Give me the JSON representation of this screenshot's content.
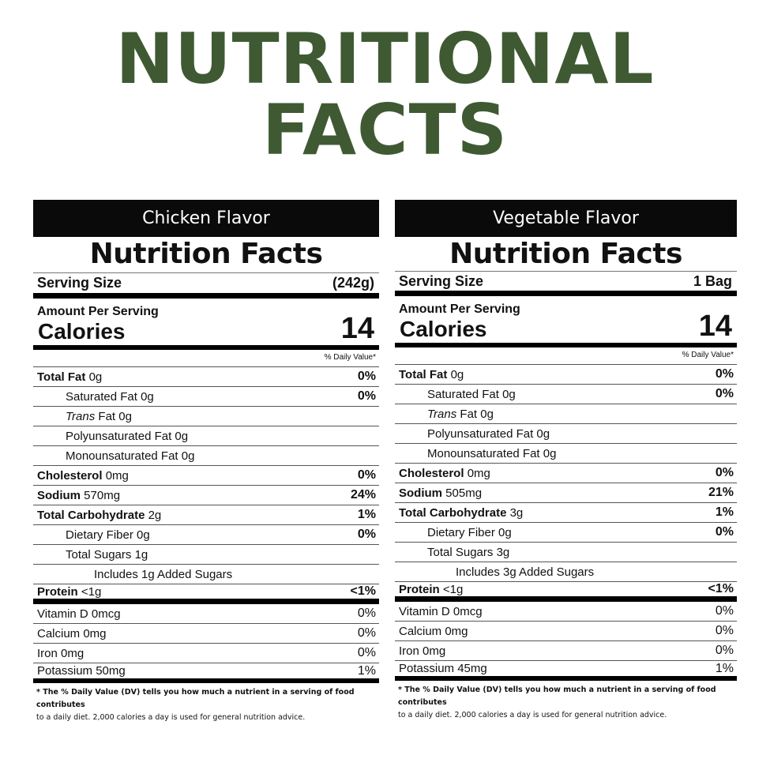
{
  "title": {
    "line1": "NUTRITIONAL",
    "line2": "FACTS"
  },
  "panels": [
    {
      "flavor": "Chicken Flavor",
      "heading": "Nutrition Facts",
      "serving_label": "Serving Size",
      "serving_value": "(242g)",
      "amount_per_serving": "Amount Per Serving",
      "calories_label": "Calories",
      "calories_value": "14",
      "daily_value_header": "% Daily Value*",
      "nutrients": [
        {
          "label": "Total Fat",
          "amount": "0g",
          "pct": "0%"
        },
        {
          "label": "Saturated Fat",
          "amount": "0g",
          "pct": "0%"
        },
        {
          "label": "Trans",
          "amount": "Fat 0g",
          "pct": ""
        },
        {
          "label": "Polyunsaturated Fat",
          "amount": "0g",
          "pct": ""
        },
        {
          "label": "Monounsaturated Fat",
          "amount": "0g",
          "pct": ""
        },
        {
          "label": "Cholesterol",
          "amount": "0mg",
          "pct": "0%"
        },
        {
          "label": "Sodium",
          "amount": "570mg",
          "pct": "24%"
        },
        {
          "label": "Total Carbohydrate",
          "amount": "2g",
          "pct": "1%"
        },
        {
          "label": "Dietary Fiber",
          "amount": "0g",
          "pct": "0%"
        },
        {
          "label": "Total Sugars",
          "amount": "1g",
          "pct": ""
        },
        {
          "label": "Includes 1g Added Sugars",
          "amount": "",
          "pct": ""
        },
        {
          "label": "Protein",
          "amount": "<1g",
          "pct": "<1%"
        }
      ],
      "vitamins": [
        {
          "label": "Vitamin D 0mcg",
          "pct": "0%"
        },
        {
          "label": "Calcium 0mg",
          "pct": "0%"
        },
        {
          "label": "Iron 0mg",
          "pct": "0%"
        },
        {
          "label": "Potassium 50mg",
          "pct": "1%"
        }
      ],
      "footnote1": "* The % Daily Value (DV) tells you how much a nutrient in a serving of food contributes",
      "footnote2": "to a daily diet. 2,000 calories a day is used for general nutrition advice."
    },
    {
      "flavor": "Vegetable Flavor",
      "heading": "Nutrition Facts",
      "serving_label": "Serving Size",
      "serving_value": "1 Bag",
      "amount_per_serving": "Amount Per Serving",
      "calories_label": "Calories",
      "calories_value": "14",
      "daily_value_header": "% Daily Value*",
      "nutrients": [
        {
          "label": "Total Fat",
          "amount": "0g",
          "pct": "0%"
        },
        {
          "label": "Saturated Fat",
          "amount": "0g",
          "pct": "0%"
        },
        {
          "label": "Trans",
          "amount": "Fat 0g",
          "pct": ""
        },
        {
          "label": "Polyunsaturated Fat",
          "amount": "0g",
          "pct": ""
        },
        {
          "label": "Monounsaturated Fat",
          "amount": "0g",
          "pct": ""
        },
        {
          "label": "Cholesterol",
          "amount": "0mg",
          "pct": "0%"
        },
        {
          "label": "Sodium",
          "amount": "505mg",
          "pct": "21%"
        },
        {
          "label": "Total Carbohydrate",
          "amount": "3g",
          "pct": "1%"
        },
        {
          "label": "Dietary Fiber",
          "amount": "0g",
          "pct": "0%"
        },
        {
          "label": "Total Sugars",
          "amount": "3g",
          "pct": ""
        },
        {
          "label": "Includes 3g Added Sugars",
          "amount": "",
          "pct": ""
        },
        {
          "label": "Protein",
          "amount": "<1g",
          "pct": "<1%"
        }
      ],
      "vitamins": [
        {
          "label": "Vitamin D 0mcg",
          "pct": "0%"
        },
        {
          "label": "Calcium 0mg",
          "pct": "0%"
        },
        {
          "label": "Iron 0mg",
          "pct": "0%"
        },
        {
          "label": "Potassium 45mg",
          "pct": "1%"
        }
      ],
      "footnote1": "* The % Daily Value (DV) tells you how much a nutrient in a serving of food contributes",
      "footnote2": "to a daily diet. 2,000 calories a day is used for general nutrition advice."
    }
  ],
  "colors": {
    "title": "#3f5a33",
    "banner": "#0a0a0a"
  }
}
